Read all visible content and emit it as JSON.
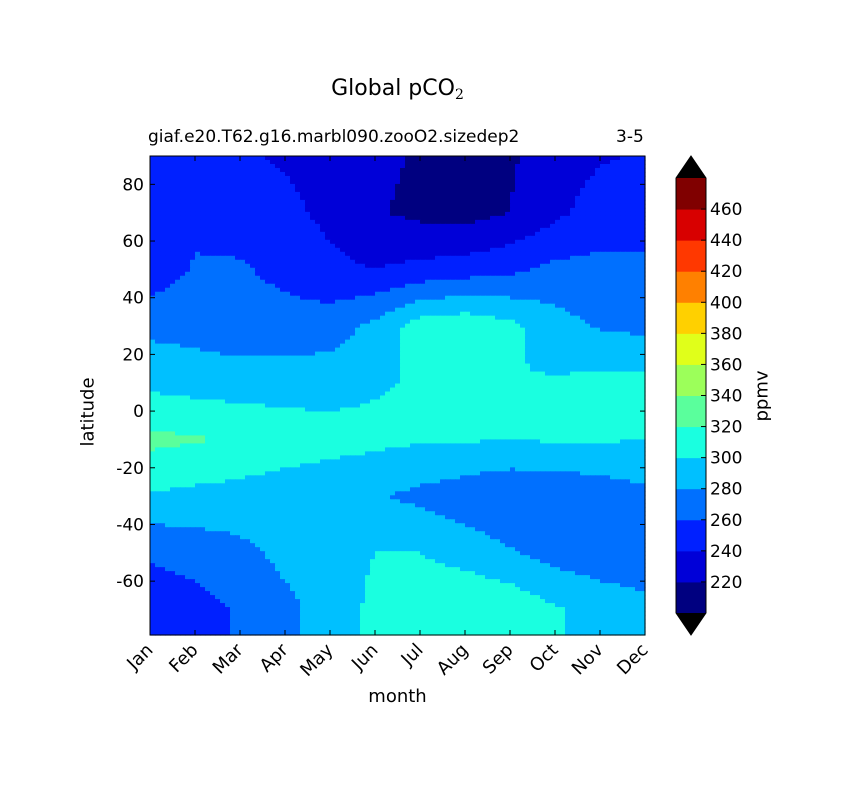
{
  "title": "Global pCO",
  "title_sub": "2",
  "run_label": "giaf.e20.T62.g16.marbl090.zooO2.sizedep2",
  "months_label": "3-5",
  "chart_data": {
    "type": "heatmap",
    "subtype": "filled-contour",
    "xlabel": "month",
    "ylabel": "latitude",
    "colorbar_label": "ppmv",
    "x": [
      "Jan",
      "Feb",
      "Mar",
      "Apr",
      "May",
      "Jun",
      "Jul",
      "Aug",
      "Sep",
      "Oct",
      "Nov",
      "Dec"
    ],
    "y": [
      90,
      70,
      50,
      30,
      10,
      -10,
      -30,
      -50,
      -70
    ],
    "yticks": [
      80,
      60,
      40,
      20,
      0,
      -20,
      -40,
      -60
    ],
    "ylim": [
      -79,
      90
    ],
    "levels": [
      200,
      220,
      240,
      260,
      280,
      300,
      320,
      340,
      360,
      380,
      400,
      420,
      440,
      460,
      480
    ],
    "colorbar_ticks": [
      220,
      240,
      260,
      280,
      300,
      320,
      340,
      360,
      380,
      400,
      420,
      440,
      460
    ],
    "colormap": [
      "#000080",
      "#0000d8",
      "#0020ff",
      "#0070ff",
      "#00c0ff",
      "#1affe0",
      "#5aff9c",
      "#9cff5a",
      "#e0ff1a",
      "#ffd000",
      "#ff8000",
      "#ff3800",
      "#d80000",
      "#800000"
    ],
    "extend_colors": {
      "under": "#000000",
      "over": "#000000"
    },
    "values": [
      [
        245,
        243,
        242,
        238,
        232,
        225,
        218,
        215,
        218,
        228,
        238,
        242
      ],
      [
        248,
        255,
        252,
        245,
        235,
        222,
        215,
        212,
        220,
        235,
        250,
        255
      ],
      [
        248,
        262,
        262,
        255,
        245,
        240,
        245,
        250,
        255,
        265,
        265,
        262
      ],
      [
        275,
        272,
        268,
        268,
        270,
        285,
        310,
        315,
        305,
        288,
        278,
        275
      ],
      [
        295,
        292,
        290,
        290,
        292,
        298,
        302,
        300,
        300,
        302,
        305,
        305
      ],
      [
        325,
        322,
        318,
        312,
        308,
        305,
        302,
        302,
        300,
        302,
        302,
        300
      ],
      [
        298,
        295,
        292,
        288,
        285,
        282,
        275,
        268,
        262,
        262,
        268,
        275
      ],
      [
        262,
        268,
        275,
        285,
        292,
        300,
        300,
        292,
        282,
        272,
        268,
        268
      ],
      [
        250,
        252,
        262,
        275,
        288,
        305,
        312,
        318,
        315,
        302,
        292,
        285
      ]
    ]
  }
}
